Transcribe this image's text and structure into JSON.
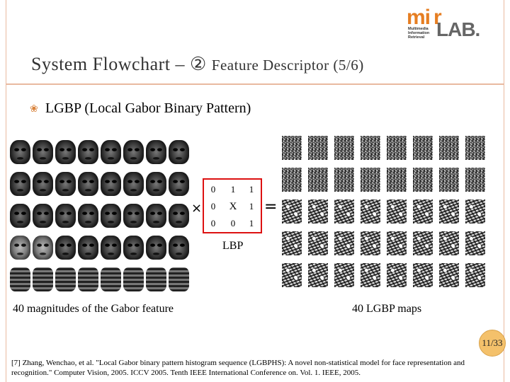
{
  "logo": {
    "mi": "mi",
    "r": "r",
    "lines": [
      "Multimedia",
      "Information",
      "Retrieval"
    ],
    "lab": "LAB."
  },
  "title": {
    "main": "System Flowchart – ②",
    "sub": "Feature Descriptor (5/6)"
  },
  "bullet": {
    "icon": "bullet-icon",
    "text": "LGBP (Local Gabor Binary Pattern)"
  },
  "magnitudes": {
    "count": 40,
    "caption": "40 magnitudes of the Gabor feature"
  },
  "lgbp_maps": {
    "count": 40,
    "caption": "40 LGBP maps"
  },
  "lbp": {
    "times_symbol": "×",
    "equals_symbol": "=",
    "label": "LBP",
    "cells": [
      [
        "0",
        "1",
        "1"
      ],
      [
        "0",
        "X",
        "1"
      ],
      [
        "0",
        "0",
        "1"
      ]
    ],
    "border_color": "#dd1111"
  },
  "reference": "[7] Zhang, Wenchao, et al. \"Local Gabor binary pattern histogram sequence (LGBPHS): A novel non-statistical model for face representation and recognition.\" Computer Vision, 2005. ICCV 2005. Tenth IEEE International Conference on. Vol. 1. IEEE, 2005.",
  "page": "11/33",
  "colors": {
    "accent": "#e67e22",
    "frame": "#e9b9a0",
    "badge": "#f4c16b"
  }
}
